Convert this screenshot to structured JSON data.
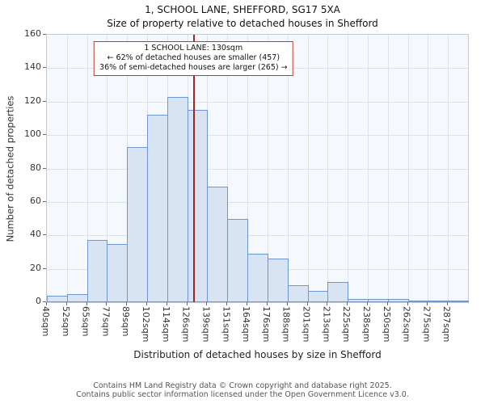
{
  "title": "1, SCHOOL LANE, SHEFFORD, SG17 5XA",
  "subtitle": "Size of property relative to detached houses in Shefford",
  "annotation": {
    "line1": "1 SCHOOL LANE: 130sqm",
    "line2": "← 62% of detached houses are smaller (457)",
    "line3": "36% of semi-detached houses are larger (265) →"
  },
  "chart_data": {
    "type": "bar",
    "title": "1, SCHOOL LANE, SHEFFORD, SG17 5XA",
    "subtitle": "Size of property relative to detached houses in Shefford",
    "xlabel": "Distribution of detached houses by size in Shefford",
    "ylabel": "Number of detached properties",
    "ylim": [
      0,
      160
    ],
    "yticks": [
      0,
      20,
      40,
      60,
      80,
      100,
      120,
      140,
      160
    ],
    "grid": true,
    "categories": [
      "40sqm",
      "52sqm",
      "65sqm",
      "77sqm",
      "89sqm",
      "102sqm",
      "114sqm",
      "126sqm",
      "139sqm",
      "151sqm",
      "164sqm",
      "176sqm",
      "188sqm",
      "201sqm",
      "213sqm",
      "225sqm",
      "238sqm",
      "250sqm",
      "262sqm",
      "275sqm",
      "287sqm"
    ],
    "values": [
      4,
      5,
      37,
      35,
      93,
      112,
      123,
      115,
      69,
      50,
      29,
      26,
      10,
      7,
      12,
      2,
      2,
      2,
      1,
      1,
      1
    ],
    "marker": {
      "label": "130sqm",
      "position_fraction": 0.348
    }
  },
  "colors": {
    "bar_fill": "#d8e3f4",
    "bar_border": "#6c96d4",
    "marker": "#a32626",
    "annotation_border": "#c0392b",
    "grid": "#dbe2ef",
    "plot_bg": "#f5f8fd"
  },
  "footer": {
    "line1": "Contains HM Land Registry data © Crown copyright and database right 2025.",
    "line2": "Contains public sector information licensed under the Open Government Licence v3.0."
  }
}
